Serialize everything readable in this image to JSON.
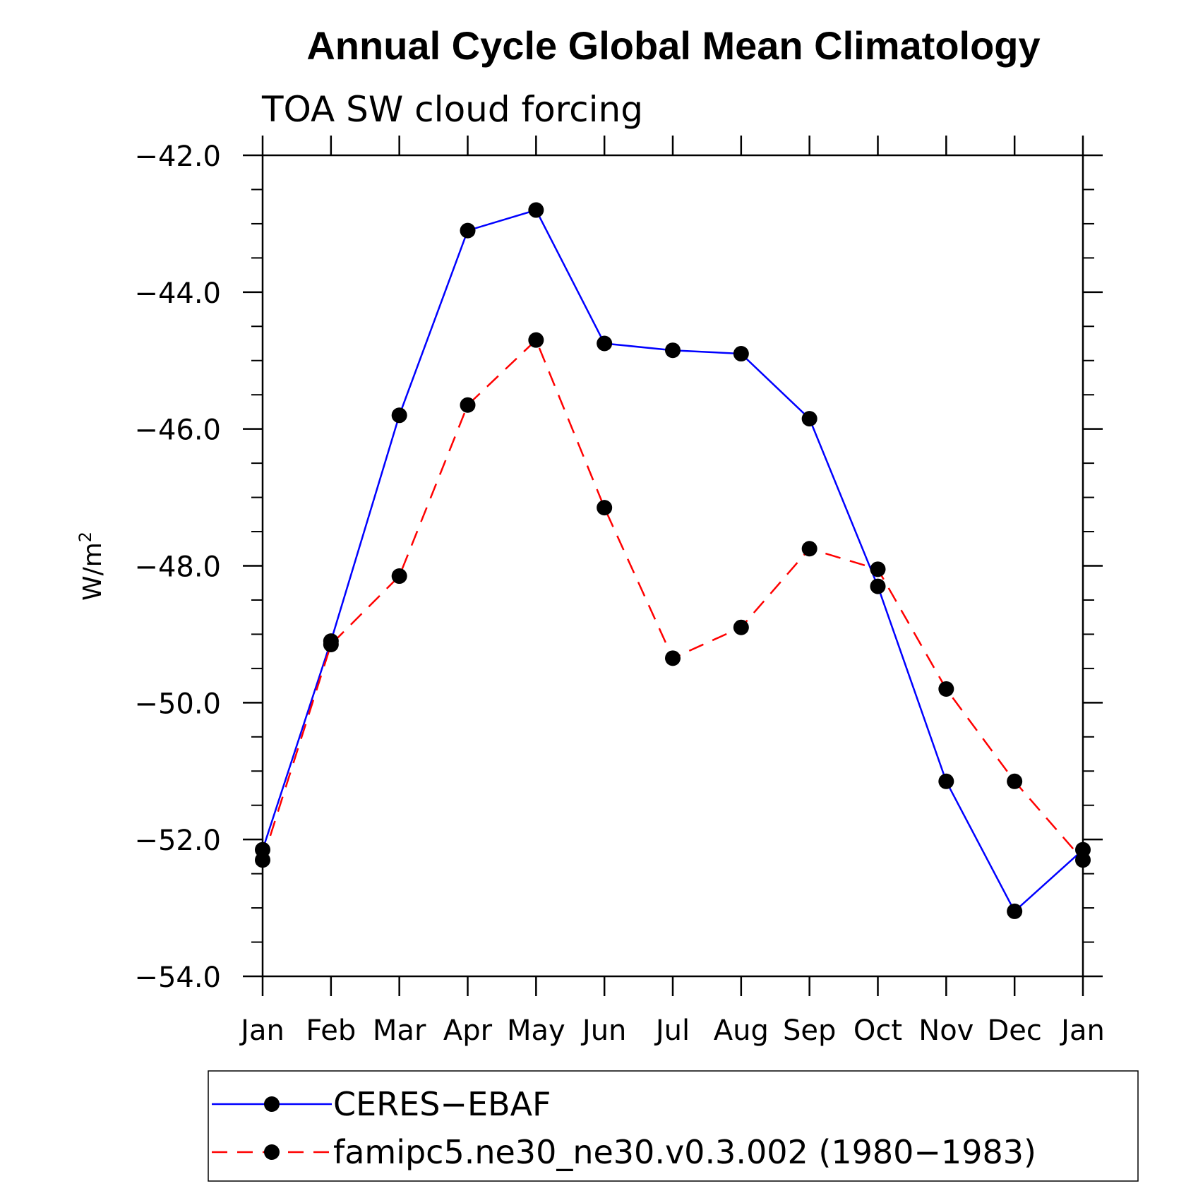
{
  "chart_data": {
    "type": "line",
    "title": "Annual Cycle Global Mean Climatology",
    "subtitle": "TOA SW cloud forcing",
    "ylabel": "W/m",
    "ylabel_superscript": "2",
    "categories": [
      "Jan",
      "Feb",
      "Mar",
      "Apr",
      "May",
      "Jun",
      "Jul",
      "Aug",
      "Sep",
      "Oct",
      "Nov",
      "Dec",
      "Jan"
    ],
    "ylim": [
      -54.0,
      -42.0
    ],
    "yticks": [
      -54.0,
      -52.0,
      -50.0,
      -48.0,
      -46.0,
      -44.0,
      -42.0
    ],
    "ytick_labels": [
      "−54.0",
      "−52.0",
      "−50.0",
      "−48.0",
      "−46.0",
      "−44.0",
      "−42.0"
    ],
    "series": [
      {
        "name": "CERES−EBAF",
        "color": "#0000ff",
        "style": "solid",
        "values": [
          -52.15,
          -49.1,
          -45.8,
          -43.1,
          -42.8,
          -44.75,
          -44.85,
          -44.9,
          -45.85,
          -48.3,
          -51.15,
          -53.05,
          -52.15
        ]
      },
      {
        "name": "famipc5.ne30_ne30.v0.3.002 (1980−1983)",
        "color": "#ff0000",
        "style": "dashed",
        "values": [
          -52.3,
          -49.15,
          -48.15,
          -45.65,
          -44.7,
          -47.15,
          -49.35,
          -48.9,
          -47.75,
          -48.05,
          -49.8,
          -51.15,
          -52.3
        ]
      }
    ],
    "legend_placement": "bottom",
    "grid": false
  }
}
